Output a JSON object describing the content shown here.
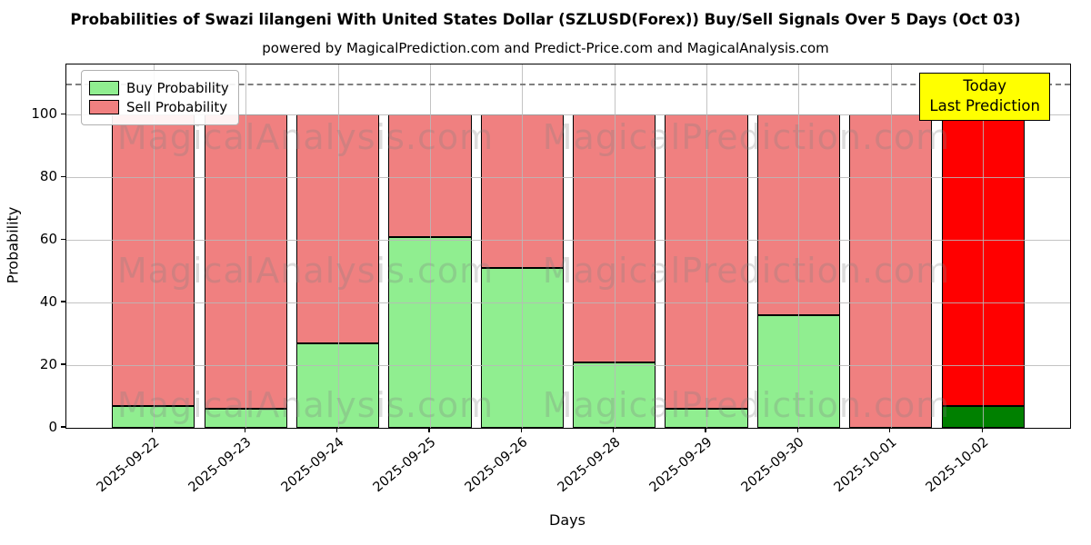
{
  "chart_data": {
    "type": "bar",
    "stacked": true,
    "title": "Probabilities of Swazi lilangeni With United States Dollar (SZLUSD(Forex)) Buy/Sell Signals Over 5 Days (Oct 03)",
    "subtitle": "powered by MagicalPrediction.com and Predict-Price.com and MagicalAnalysis.com",
    "xlabel": "Days",
    "ylabel": "Probability",
    "categories": [
      "2025-09-22",
      "2025-09-23",
      "2025-09-24",
      "2025-09-25",
      "2025-09-26",
      "2025-09-28",
      "2025-09-29",
      "2025-09-30",
      "2025-10-01",
      "2025-10-02"
    ],
    "series": [
      {
        "name": "Buy Probability",
        "values": [
          7,
          6,
          27,
          61,
          51,
          21,
          6,
          36,
          0,
          7
        ],
        "color_normal": "#90ee90",
        "color_today": "#008000"
      },
      {
        "name": "Sell Probability",
        "values": [
          93,
          94,
          73,
          39,
          49,
          79,
          94,
          64,
          100,
          93
        ],
        "color_normal": "#f08080",
        "color_today": "#ff0000"
      }
    ],
    "today_index": 9,
    "ylim": [
      0,
      116
    ],
    "yticks": [
      0,
      20,
      40,
      60,
      80,
      100
    ],
    "dashed_line_y": 110,
    "grid": true,
    "legend_position": "upper-left",
    "annotation": {
      "lines": [
        "Today",
        "Last Prediction"
      ],
      "bg": "#ffff00"
    },
    "watermarks": {
      "left_text": "MagicalAnalysis.com",
      "right_text": "MagicalPrediction.com"
    },
    "colors": {
      "edge": "#000000",
      "grid": "#b9b9b9",
      "dashed": "#808080",
      "watermark": "#808080"
    }
  }
}
